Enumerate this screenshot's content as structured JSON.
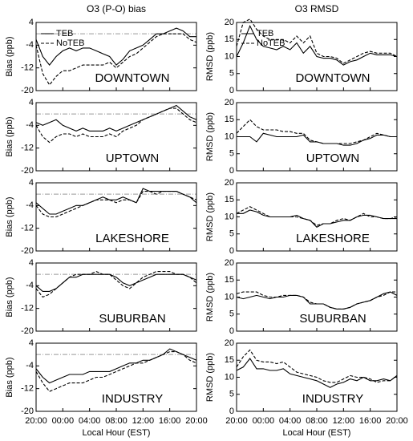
{
  "chart_data": [
    {
      "type": "line",
      "title": "O3 (P-O) bias",
      "ylabel": "Bias (ppb)",
      "annotation": "DOWNTOWN",
      "legend": "upper left",
      "hline": 0,
      "x": [
        0,
        1,
        2,
        3,
        4,
        5,
        6,
        7,
        8,
        9,
        10,
        11,
        12,
        13,
        14,
        15,
        16,
        17,
        18,
        19,
        20,
        21,
        22,
        23,
        24
      ],
      "xlim": [
        0,
        24
      ],
      "xticks": [
        0,
        4,
        8,
        12,
        16,
        20,
        24
      ],
      "ylim": [
        -20,
        4
      ],
      "yticks": [
        -20,
        -12,
        -4,
        4
      ],
      "series": [
        {
          "name": "TEB",
          "color": "#000000",
          "line_style": "solid",
          "values": [
            -2,
            -8,
            -11,
            -8,
            -6,
            -5,
            -6,
            -5,
            -5,
            -6,
            -7,
            -8,
            -11,
            -9,
            -6,
            -5,
            -4,
            -2,
            0,
            0,
            1,
            2,
            1,
            -1,
            -1
          ]
        },
        {
          "name": "NoTEB",
          "color": "#000000",
          "line_style": "dashed",
          "values": [
            -4,
            -14,
            -18,
            -15,
            -13,
            -13,
            -12,
            -11,
            -11,
            -11,
            -11,
            -10,
            -12,
            -10,
            -8,
            -7,
            -5,
            -3,
            -1,
            0,
            0,
            0,
            0,
            -2,
            -3
          ]
        }
      ]
    },
    {
      "type": "line",
      "title": "O3  RMSD",
      "ylabel": "RMSD (ppb)",
      "annotation": "DOWNTOWN",
      "legend": "upper left",
      "x": [
        0,
        1,
        2,
        3,
        4,
        5,
        6,
        7,
        8,
        9,
        10,
        11,
        12,
        13,
        14,
        15,
        16,
        17,
        18,
        19,
        20,
        21,
        22,
        23,
        24
      ],
      "xlim": [
        0,
        24
      ],
      "xticks": [
        0,
        4,
        8,
        12,
        16,
        20,
        24
      ],
      "ylim": [
        0,
        20
      ],
      "yticks": [
        0,
        5,
        10,
        15,
        20
      ],
      "series": [
        {
          "name": "TEB",
          "color": "#000000",
          "line_style": "solid",
          "values": [
            10,
            14,
            19,
            15,
            13,
            12.5,
            12,
            13,
            12,
            14,
            11,
            13,
            10,
            9.5,
            9.5,
            9,
            7.5,
            8.5,
            9,
            10,
            11,
            10.5,
            10.5,
            10.5,
            10
          ]
        },
        {
          "name": "NoTEB",
          "color": "#000000",
          "line_style": "dashed",
          "values": [
            13,
            20,
            21,
            18,
            16,
            15,
            15,
            15,
            14,
            16,
            14,
            16,
            11,
            10,
            10,
            9.5,
            8,
            9,
            10,
            11,
            11.5,
            11,
            11,
            11,
            10
          ]
        }
      ]
    },
    {
      "type": "line",
      "ylabel": "Bias (ppb)",
      "annotation": "UPTOWN",
      "hline": 0,
      "x": [
        0,
        1,
        2,
        3,
        4,
        5,
        6,
        7,
        8,
        9,
        10,
        11,
        12,
        13,
        14,
        15,
        16,
        17,
        18,
        19,
        20,
        21,
        22,
        23,
        24
      ],
      "xlim": [
        0,
        24
      ],
      "xticks": [
        0,
        4,
        8,
        12,
        16,
        20,
        24
      ],
      "ylim": [
        -20,
        4
      ],
      "yticks": [
        -20,
        -12,
        -4,
        4
      ],
      "series": [
        {
          "color": "#000000",
          "line_style": "solid",
          "values": [
            -3,
            -4,
            -3,
            -2,
            -4,
            -5,
            -6,
            -5,
            -6,
            -6,
            -6,
            -5,
            -6,
            -5,
            -4,
            -3,
            -2,
            -1,
            0,
            1,
            2,
            3,
            1,
            -1,
            -2
          ]
        },
        {
          "color": "#000000",
          "line_style": "dashed",
          "values": [
            -4,
            -8,
            -10,
            -8,
            -7,
            -7,
            -8,
            -7,
            -8,
            -8,
            -8,
            -7,
            -8,
            -6,
            -5,
            -4,
            -2,
            -1,
            0,
            1,
            2,
            2,
            0,
            -2,
            -3
          ]
        }
      ]
    },
    {
      "type": "line",
      "ylabel": "RMSD (ppb)",
      "annotation": "UPTOWN",
      "x": [
        0,
        1,
        2,
        3,
        4,
        5,
        6,
        7,
        8,
        9,
        10,
        11,
        12,
        13,
        14,
        15,
        16,
        17,
        18,
        19,
        20,
        21,
        22,
        23,
        24
      ],
      "xlim": [
        0,
        24
      ],
      "xticks": [
        0,
        4,
        8,
        12,
        16,
        20,
        24
      ],
      "ylim": [
        0,
        20
      ],
      "yticks": [
        0,
        5,
        10,
        15,
        20
      ],
      "series": [
        {
          "color": "#000000",
          "line_style": "solid",
          "values": [
            10,
            10,
            10,
            8.5,
            11,
            10.5,
            10,
            10,
            10,
            10,
            10.5,
            8.5,
            8.5,
            8,
            8,
            8,
            7.5,
            7.5,
            8,
            9,
            9.5,
            10.5,
            10.5,
            10,
            10
          ]
        },
        {
          "color": "#000000",
          "line_style": "dashed",
          "values": [
            11,
            13,
            15,
            13,
            12,
            12,
            12,
            11.5,
            11.5,
            11,
            11,
            9,
            8.5,
            8,
            8,
            8,
            8,
            8,
            8.5,
            9,
            10,
            11,
            10.5,
            10,
            10
          ]
        }
      ]
    },
    {
      "type": "line",
      "ylabel": "Bias (ppb)",
      "annotation": "LAKESHORE",
      "hline": 0,
      "x": [
        0,
        1,
        2,
        3,
        4,
        5,
        6,
        7,
        8,
        9,
        10,
        11,
        12,
        13,
        14,
        15,
        16,
        17,
        18,
        19,
        20,
        21,
        22,
        23,
        24
      ],
      "xlim": [
        0,
        24
      ],
      "xticks": [
        0,
        4,
        8,
        12,
        16,
        20,
        24
      ],
      "ylim": [
        -20,
        4
      ],
      "yticks": [
        -20,
        -12,
        -4,
        4
      ],
      "series": [
        {
          "color": "#000000",
          "line_style": "solid",
          "values": [
            -3,
            -5,
            -7,
            -7,
            -6,
            -5,
            -4,
            -4,
            -3,
            -2,
            -1,
            -2,
            -2,
            -1,
            -2,
            -3,
            2,
            1,
            1,
            1,
            1,
            1,
            0,
            -1,
            -3
          ]
        },
        {
          "color": "#000000",
          "line_style": "dashed",
          "values": [
            -4,
            -7,
            -8,
            -8,
            -7,
            -6,
            -5,
            -4,
            -3,
            -2,
            -2,
            -2,
            -3,
            -2,
            -2,
            -3,
            1,
            1,
            0,
            1,
            1,
            1,
            0,
            -1,
            -2
          ]
        }
      ]
    },
    {
      "type": "line",
      "ylabel": "RMSD (ppb)",
      "annotation": "LAKESHORE",
      "x": [
        0,
        1,
        2,
        3,
        4,
        5,
        6,
        7,
        8,
        9,
        10,
        11,
        12,
        13,
        14,
        15,
        16,
        17,
        18,
        19,
        20,
        21,
        22,
        23,
        24
      ],
      "xlim": [
        0,
        24
      ],
      "xticks": [
        0,
        4,
        8,
        12,
        16,
        20,
        24
      ],
      "ylim": [
        0,
        20
      ],
      "yticks": [
        0,
        5,
        10,
        15,
        20
      ],
      "series": [
        {
          "color": "#000000",
          "line_style": "solid",
          "values": [
            11,
            11,
            12,
            11.5,
            10.5,
            10,
            10,
            10,
            10,
            10.5,
            9.5,
            9,
            7,
            8,
            8,
            8.5,
            9,
            9,
            10,
            10.5,
            10.5,
            10,
            9.5,
            9.5,
            9.5
          ]
        },
        {
          "color": "#000000",
          "line_style": "dashed",
          "values": [
            11,
            12,
            13,
            12,
            11,
            10,
            10,
            10,
            10,
            10,
            9.5,
            9,
            7.5,
            8,
            8,
            9,
            9.5,
            9,
            10,
            11,
            10,
            10,
            9.5,
            9.5,
            10
          ]
        }
      ]
    },
    {
      "type": "line",
      "ylabel": "Bias (ppb)",
      "annotation": "SUBURBAN",
      "hline": 0,
      "x": [
        0,
        1,
        2,
        3,
        4,
        5,
        6,
        7,
        8,
        9,
        10,
        11,
        12,
        13,
        14,
        15,
        16,
        17,
        18,
        19,
        20,
        21,
        22,
        23,
        24
      ],
      "xlim": [
        0,
        24
      ],
      "xticks": [
        0,
        4,
        8,
        12,
        16,
        20,
        24
      ],
      "ylim": [
        -20,
        4
      ],
      "yticks": [
        -20,
        -12,
        -4,
        4
      ],
      "series": [
        {
          "color": "#000000",
          "line_style": "solid",
          "values": [
            -4,
            -6,
            -6,
            -5,
            -3,
            -1,
            -1,
            0,
            0,
            0,
            0,
            0,
            -1,
            -3,
            -4,
            -3,
            -2,
            -1,
            0,
            0,
            0,
            0,
            0,
            -1,
            -2
          ]
        },
        {
          "color": "#000000",
          "line_style": "dashed",
          "values": [
            -5,
            -8,
            -7,
            -5,
            -3,
            -1,
            0,
            0,
            0,
            1,
            0,
            0,
            -2,
            -4,
            -5,
            -3,
            -1,
            0,
            1,
            1,
            1,
            0,
            0,
            -1,
            -3
          ]
        }
      ]
    },
    {
      "type": "line",
      "ylabel": "RMSD (ppb)",
      "annotation": "SUBURBAN",
      "x": [
        0,
        1,
        2,
        3,
        4,
        5,
        6,
        7,
        8,
        9,
        10,
        11,
        12,
        13,
        14,
        15,
        16,
        17,
        18,
        19,
        20,
        21,
        22,
        23,
        24
      ],
      "xlim": [
        0,
        24
      ],
      "xticks": [
        0,
        4,
        8,
        12,
        16,
        20,
        24
      ],
      "ylim": [
        0,
        20
      ],
      "yticks": [
        0,
        5,
        10,
        15,
        20
      ],
      "series": [
        {
          "color": "#000000",
          "line_style": "solid",
          "values": [
            10,
            9.5,
            10,
            10.5,
            10,
            9.5,
            10,
            10,
            10.5,
            10.5,
            10,
            8,
            8,
            8,
            7,
            6.5,
            6.5,
            7,
            8,
            8.5,
            9,
            10,
            11,
            11.5,
            10.5
          ]
        },
        {
          "color": "#000000",
          "line_style": "dashed",
          "values": [
            11,
            11.5,
            11.5,
            11.5,
            10.5,
            10,
            10,
            10.5,
            10.5,
            10.5,
            10,
            8.5,
            8,
            8,
            7,
            6.5,
            6.5,
            7,
            8,
            8.5,
            9,
            10,
            10.5,
            11.5,
            11.5
          ]
        }
      ]
    },
    {
      "type": "line",
      "ylabel": "Bias (ppb)",
      "annotation": "INDUSTRY",
      "hline": 0,
      "xlabel": "Local Hour (EST)",
      "x": [
        0,
        1,
        2,
        3,
        4,
        5,
        6,
        7,
        8,
        9,
        10,
        11,
        12,
        13,
        14,
        15,
        16,
        17,
        18,
        19,
        20,
        21,
        22,
        23,
        24
      ],
      "xlim": [
        0,
        24
      ],
      "xticks": [
        {
          "value": 0,
          "label": "20:00"
        },
        {
          "value": 4,
          "label": "00:00"
        },
        {
          "value": 8,
          "label": "04:00"
        },
        {
          "value": 12,
          "label": "08:00"
        },
        {
          "value": 16,
          "label": "12:00"
        },
        {
          "value": 20,
          "label": "16:00"
        },
        {
          "value": 24,
          "label": "20:00"
        }
      ],
      "ylim": [
        -20,
        4
      ],
      "yticks": [
        -20,
        -12,
        -4,
        4
      ],
      "series": [
        {
          "color": "#000000",
          "line_style": "solid",
          "values": [
            -5,
            -8,
            -10,
            -9,
            -8,
            -7,
            -7,
            -7,
            -6,
            -6,
            -6,
            -6,
            -5,
            -4,
            -3,
            -3,
            -2,
            -2,
            -1,
            0,
            2,
            1,
            0,
            -1,
            -2
          ]
        },
        {
          "color": "#000000",
          "line_style": "dashed",
          "values": [
            -6,
            -10,
            -13,
            -12,
            -11,
            -10,
            -10,
            -10,
            -9,
            -8,
            -8,
            -7,
            -6,
            -5,
            -4,
            -3,
            -3,
            -2,
            -1,
            0,
            1,
            1,
            0,
            -2,
            -3
          ]
        }
      ]
    },
    {
      "type": "line",
      "ylabel": "RMSD (ppb)",
      "annotation": "INDUSTRY",
      "xlabel": "Local Hour (EST)",
      "x": [
        0,
        1,
        2,
        3,
        4,
        5,
        6,
        7,
        8,
        9,
        10,
        11,
        12,
        13,
        14,
        15,
        16,
        17,
        18,
        19,
        20,
        21,
        22,
        23,
        24
      ],
      "xlim": [
        0,
        24
      ],
      "xticks": [
        {
          "value": 0,
          "label": "20:00"
        },
        {
          "value": 4,
          "label": "00:00"
        },
        {
          "value": 8,
          "label": "04:00"
        },
        {
          "value": 12,
          "label": "08:00"
        },
        {
          "value": 16,
          "label": "12:00"
        },
        {
          "value": 20,
          "label": "16:00"
        },
        {
          "value": 24,
          "label": "20:00"
        }
      ],
      "ylim": [
        0,
        20
      ],
      "yticks": [
        0,
        5,
        10,
        15,
        20
      ],
      "series": [
        {
          "color": "#000000",
          "line_style": "solid",
          "values": [
            12,
            13,
            15.5,
            12.5,
            12.5,
            12,
            12,
            12.5,
            11,
            10.5,
            10,
            9.5,
            9,
            8,
            7,
            8,
            8.5,
            9.5,
            9,
            10,
            9,
            9,
            9.5,
            9,
            10.5
          ]
        },
        {
          "color": "#000000",
          "line_style": "dashed",
          "values": [
            13,
            16,
            18,
            15,
            14.5,
            14.5,
            14,
            14.5,
            13,
            11.5,
            11,
            10.5,
            10,
            9,
            8.5,
            8.5,
            9.5,
            10.5,
            10,
            10,
            9.5,
            8.5,
            9,
            9,
            10.5
          ]
        }
      ]
    }
  ]
}
